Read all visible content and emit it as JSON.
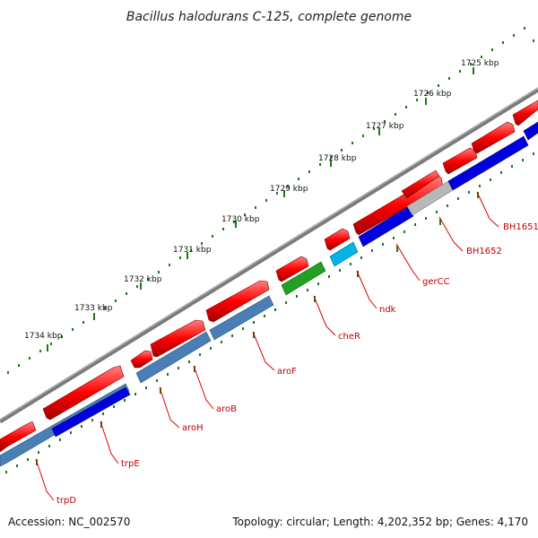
{
  "title": "Bacillus halodurans C-125, complete genome",
  "footer": {
    "accession": "Accession: NC_002570",
    "summary": "Topology: circular; Length: 4,202,352 bp; Genes: 4,170"
  },
  "tick_labels": [
    "1725 kbp",
    "1726 kbp",
    "1727 kbp",
    "1728 kbp",
    "1729 kbp",
    "1730 kbp",
    "1731 kbp",
    "1732 kbp",
    "1733 kbp",
    "1734 kbp"
  ],
  "gene_labels": [
    "BH1651",
    "BH1652",
    "gerCC",
    "ndk",
    "cheR",
    "aroF",
    "aroB",
    "aroH",
    "trpE",
    "trpD"
  ],
  "colors": {
    "backbone": "#7a7a7a",
    "forward_cds": "#ff0000",
    "reverse_cds_blue": "#0000dd",
    "reverse_cds_steel": "#4a7fb5",
    "reverse_cds_gray": "#b8b8b8",
    "reverse_cds_cyan": "#00b4e6",
    "reverse_cds_green": "#22a022",
    "tick": "#1a7a1a",
    "gene_label": "#c00000"
  }
}
